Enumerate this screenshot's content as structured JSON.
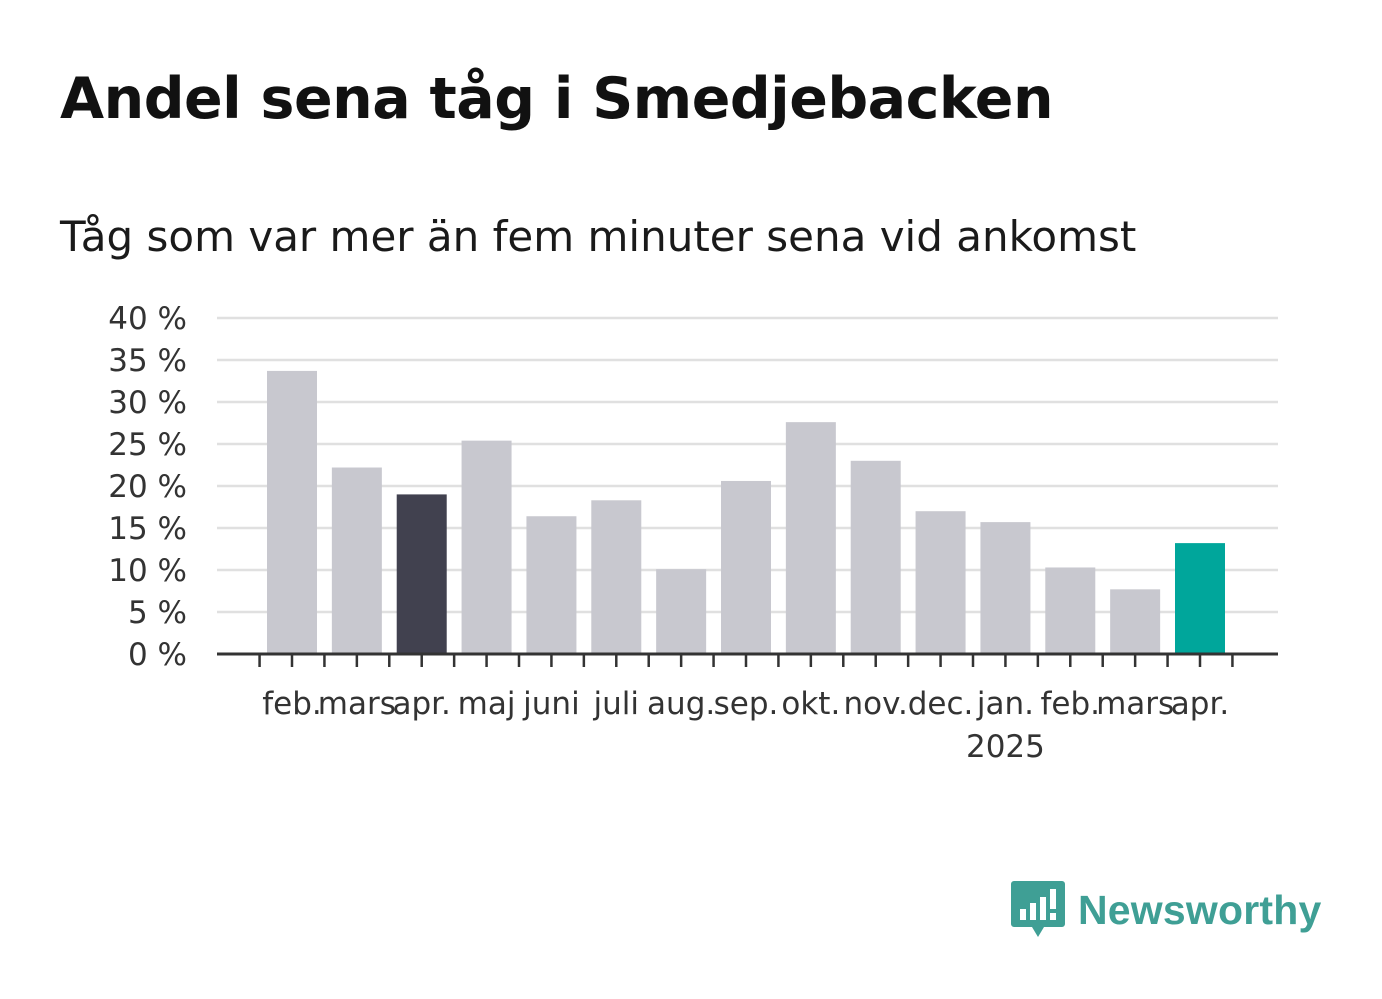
{
  "title": "Andel sena tåg i Smedjebacken",
  "subtitle": "Tåg som var mer än fem minuter sena vid ankomst",
  "brand": {
    "name": "Newsworthy",
    "logo_icon": "newsworthy-bar-chart-icon",
    "color": "#3f9f95"
  },
  "chart_data": {
    "type": "bar",
    "categories": [
      "feb.",
      "mars",
      "apr.",
      "maj",
      "juni",
      "juli",
      "aug.",
      "sep.",
      "okt.",
      "nov.",
      "dec.",
      "jan.",
      "feb.",
      "mars",
      "apr."
    ],
    "category_sublabels": [
      "",
      "",
      "",
      "",
      "",
      "",
      "",
      "",
      "",
      "",
      "",
      "2025",
      "",
      "",
      ""
    ],
    "values": [
      33.7,
      22.2,
      19.0,
      25.4,
      16.4,
      18.3,
      10.1,
      20.6,
      27.6,
      23.0,
      17.0,
      15.7,
      10.3,
      7.7,
      13.2
    ],
    "bar_colors": [
      "#c8c8cf",
      "#c8c8cf",
      "#41414f",
      "#c8c8cf",
      "#c8c8cf",
      "#c8c8cf",
      "#c8c8cf",
      "#c8c8cf",
      "#c8c8cf",
      "#c8c8cf",
      "#c8c8cf",
      "#c8c8cf",
      "#c8c8cf",
      "#c8c8cf",
      "#00a69b"
    ],
    "y_ticks": [
      0,
      5,
      10,
      15,
      20,
      25,
      30,
      35,
      40
    ],
    "y_tick_suffix": " %",
    "ylim": [
      0,
      40
    ],
    "grid": true,
    "colors": {
      "default": "#c8c8cf",
      "highlight_dark": "#41414f",
      "highlight_current": "#00a69b",
      "grid": "#e0e0e0",
      "axis": "#333333"
    }
  }
}
